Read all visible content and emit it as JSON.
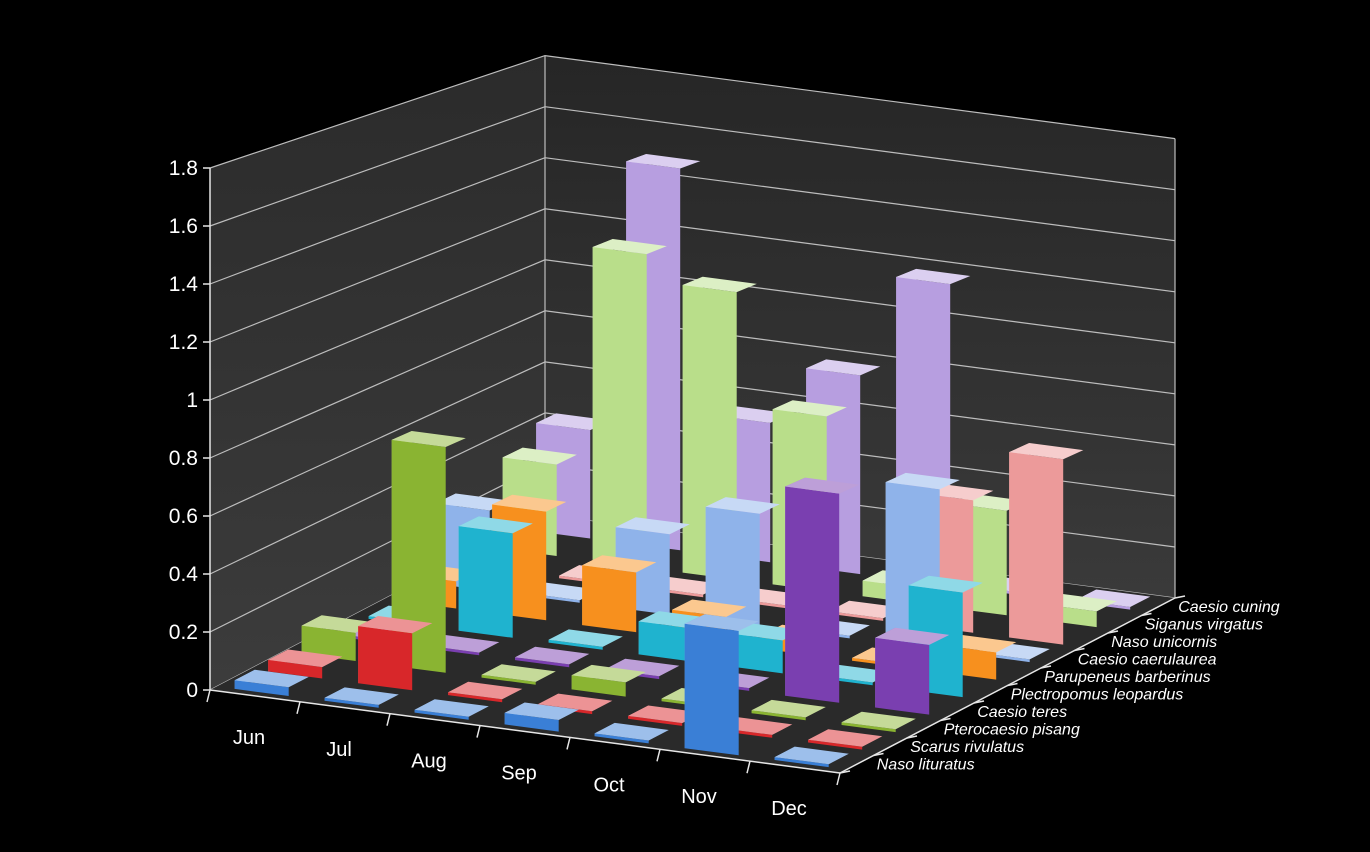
{
  "chart_data": {
    "type": "bar",
    "subtype": "3d-column",
    "title": "",
    "xlabel": "",
    "ylabel": "",
    "ylim": [
      0,
      1.8
    ],
    "yticks": [
      "0",
      "0.2",
      "0.4",
      "0.6",
      "0.8",
      "1",
      "1.2",
      "1.4",
      "1.6",
      "1.8"
    ],
    "grid": true,
    "categories": [
      "Jun",
      "Jul",
      "Aug",
      "Sep",
      "Oct",
      "Nov",
      "Dec"
    ],
    "series": [
      {
        "name": "Naso lituratus",
        "color": "#3a7fd6",
        "values": [
          0.03,
          0.01,
          0.01,
          0.04,
          0.01,
          0.43,
          0.01
        ]
      },
      {
        "name": "Scarus rivulatus",
        "color": "#d8272a",
        "values": [
          0.04,
          0.2,
          0.01,
          0.01,
          0.01,
          0.01,
          0.01
        ]
      },
      {
        "name": "Pterocaesio pisang",
        "color": "#8ab432",
        "values": [
          0.1,
          0.8,
          0.01,
          0.05,
          0.01,
          0.01,
          0.01
        ]
      },
      {
        "name": "Caesio teres",
        "color": "#7a3fb0",
        "values": [
          0.01,
          0.01,
          0.01,
          0.01,
          0.01,
          0.75,
          0.25
        ]
      },
      {
        "name": "Plectropomus leopardus",
        "color": "#1fb3cf",
        "values": [
          0.01,
          0.38,
          0.01,
          0.12,
          0.12,
          0.01,
          0.38
        ]
      },
      {
        "name": "Parupeneus barberinus",
        "color": "#f7901e",
        "values": [
          0.1,
          0.4,
          0.22,
          0.1,
          0.05,
          0.01,
          0.1
        ]
      },
      {
        "name": "Caesio caerulaurea",
        "color": "#8fb3ea",
        "values": [
          0.3,
          0.01,
          0.3,
          0.42,
          0.01,
          0.6,
          0.01
        ]
      },
      {
        "name": "Naso unicornis",
        "color": "#ec9a9a",
        "values": [
          0.01,
          0.01,
          0.01,
          0.01,
          0.01,
          0.5,
          0.7
        ]
      },
      {
        "name": "Siganus virgatus",
        "color": "#b9de8a",
        "values": [
          0.35,
          1.2,
          1.1,
          0.67,
          0.06,
          0.4,
          0.06
        ]
      },
      {
        "name": "Caesio cuning",
        "color": "#b79ee0",
        "values": [
          0.42,
          1.48,
          0.54,
          0.77,
          1.17,
          0.01,
          0.01
        ]
      }
    ]
  }
}
